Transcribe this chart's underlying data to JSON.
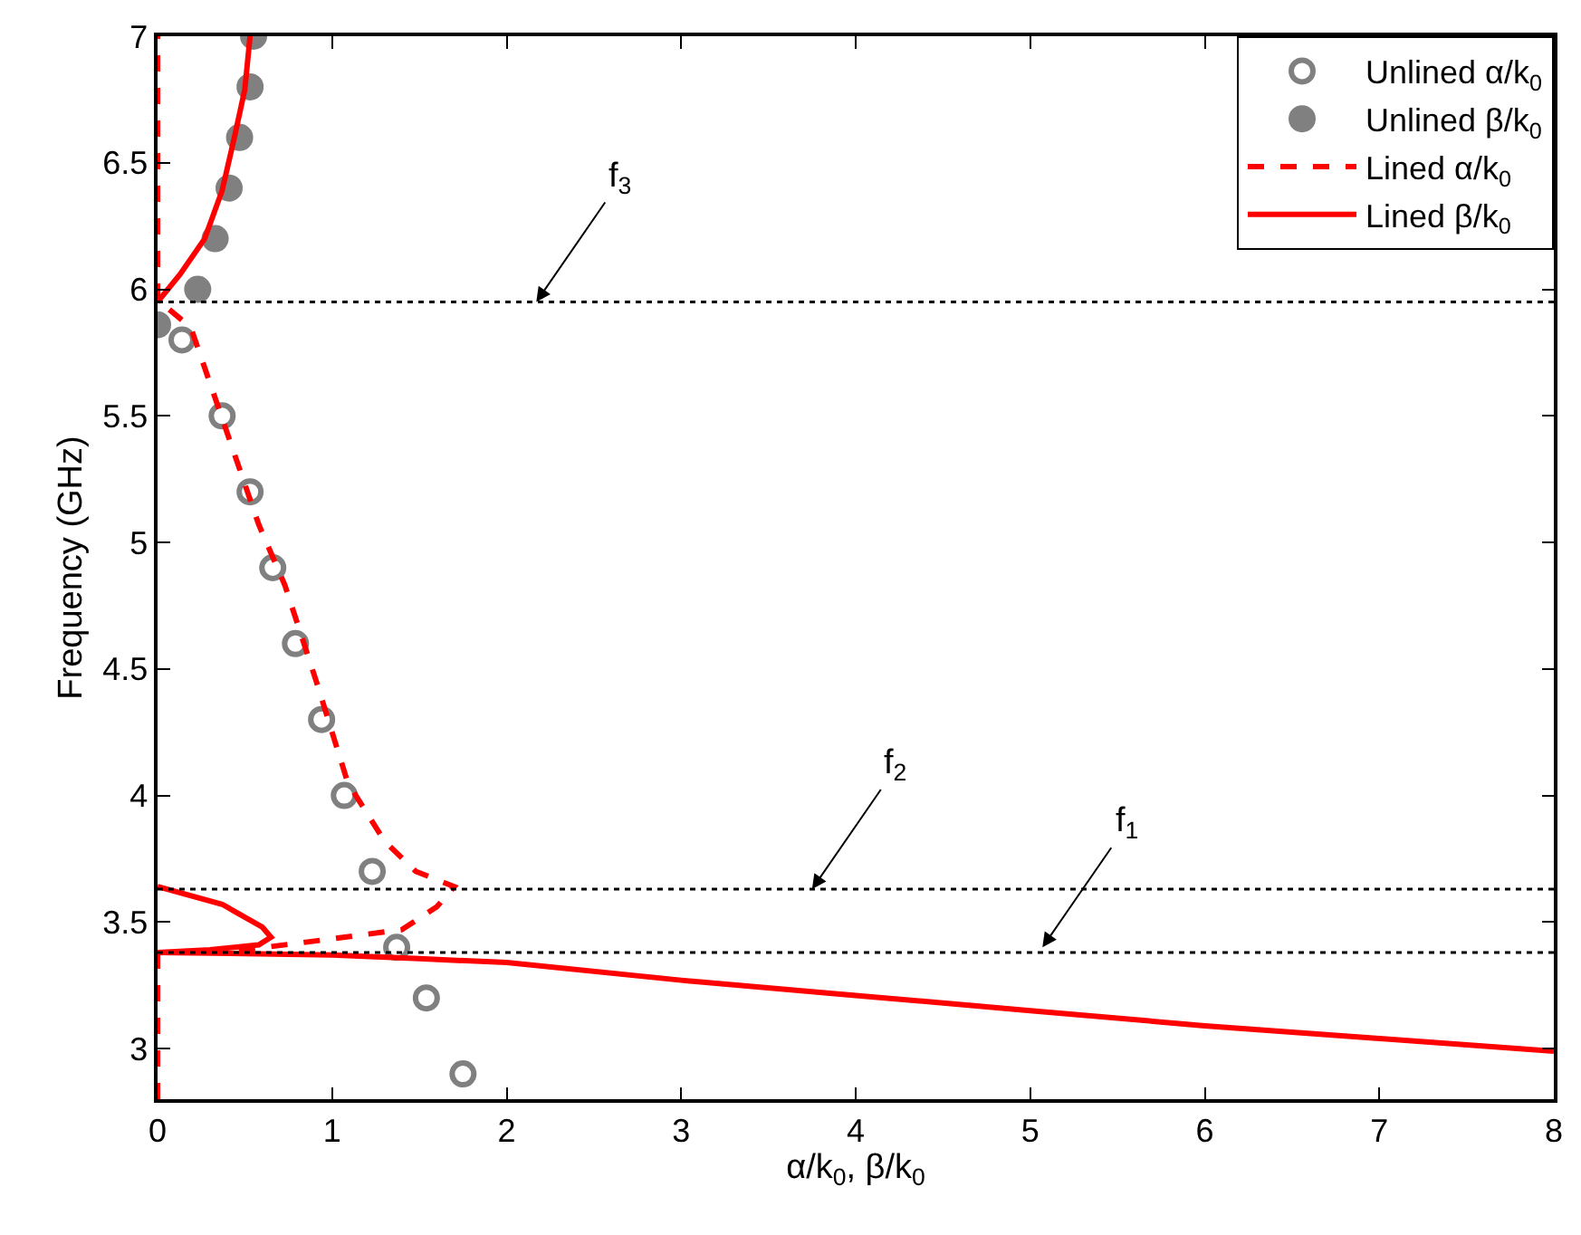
{
  "chart_data": {
    "type": "scatter",
    "xlabel": "α/k$_{0}$, β/k$_{0}$",
    "ylabel": "Frequency (GHz)",
    "xlim": [
      0,
      8
    ],
    "xticks": [
      0,
      1,
      2,
      3,
      4,
      5,
      6,
      7,
      8
    ],
    "ylim": [
      2.8,
      7
    ],
    "yticks": [
      3,
      3.5,
      4,
      4.5,
      5,
      5.5,
      6,
      6.5,
      7
    ],
    "legend": "top right",
    "series": [
      {
        "name": "Unlined α/k$_{0}$",
        "marker": "circle",
        "color": "#808080",
        "x": [
          0.14,
          0.37,
          0.53,
          0.66,
          0.79,
          0.94,
          1.07,
          1.23,
          1.37,
          1.54,
          1.75
        ],
        "values": [
          5.8,
          5.5,
          5.2,
          4.9,
          4.6,
          4.3,
          4.0,
          3.7,
          3.4,
          3.2,
          2.9
        ]
      },
      {
        "name": "Unlined β/k$_{0}$",
        "marker": "circle",
        "color": "#808080",
        "x": [
          0,
          0.23,
          0.33,
          0.41,
          0.47,
          0.53,
          0.55
        ],
        "values": [
          5.86,
          6.0,
          6.2,
          6.4,
          6.6,
          6.8,
          7.0
        ]
      },
      {
        "name": "Lined α/k$_{0}$",
        "type": "line",
        "line_style": "dashed",
        "color": "#ff0000",
        "x": [
          0,
          0,
          0.5,
          0.96,
          1.4,
          1.6,
          1.7,
          1.48,
          1.3,
          1.09,
          0.91,
          0.73,
          0.58,
          0.37,
          0.19,
          0.05,
          0,
          0
        ],
        "values": [
          2.8,
          3.38,
          3.39,
          3.43,
          3.47,
          3.56,
          3.64,
          3.7,
          3.82,
          4.05,
          4.45,
          4.83,
          5.07,
          5.49,
          5.85,
          5.93,
          5.95,
          7.0
        ]
      },
      {
        "name": "Lined β/k$_{0}$",
        "type": "line",
        "line_style": "solid",
        "color": "#ff0000",
        "x": [
          0,
          0.13,
          0.27,
          0.37,
          0.44,
          0.5,
          0.53,
          null,
          0,
          0.37,
          0.6,
          0.65,
          0.58,
          0.3,
          0,
          0.5,
          1,
          1.5,
          2,
          3,
          4,
          5,
          6,
          7,
          8
        ],
        "values": [
          5.95,
          6.06,
          6.2,
          6.39,
          6.6,
          6.79,
          7.0,
          null,
          3.64,
          3.57,
          3.48,
          3.44,
          3.41,
          3.39,
          3.38,
          3.375,
          3.37,
          3.355,
          3.34,
          3.27,
          3.21,
          3.15,
          3.09,
          3.04,
          2.99
        ]
      }
    ],
    "ref_lines": [
      {
        "axis": "y",
        "value": 5.95,
        "color": "#000000",
        "line_style": "dotted"
      },
      {
        "axis": "y",
        "value": 3.63,
        "color": "#000000",
        "line_style": "dotted"
      },
      {
        "axis": "y",
        "value": 3.38,
        "color": "#000000",
        "line_style": "dotted"
      }
    ],
    "annotations": [
      {
        "text": "f$_{3}$",
        "x": 2.17,
        "y": 5.95
      },
      {
        "text": "f$_{2}$",
        "x": 3.75,
        "y": 3.63
      },
      {
        "text": "f$_{1}$",
        "x": 5.07,
        "y": 3.4
      }
    ]
  }
}
